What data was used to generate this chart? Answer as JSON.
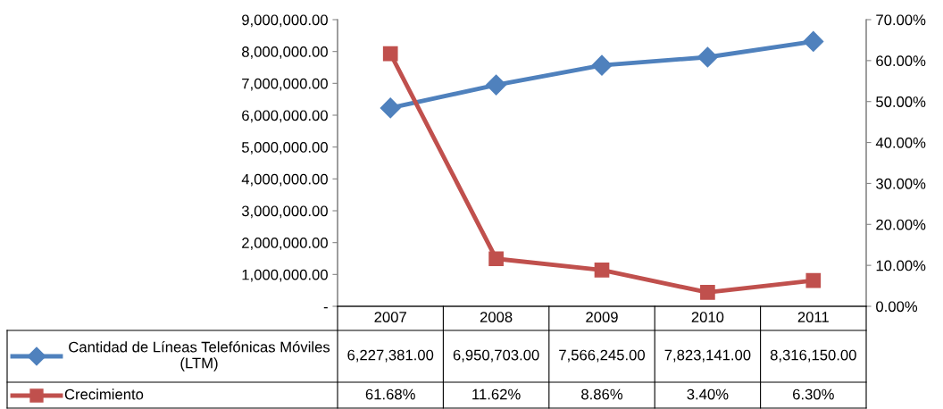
{
  "chart_data": {
    "type": "line",
    "categories": [
      "2007",
      "2008",
      "2009",
      "2010",
      "2011"
    ],
    "series": [
      {
        "name": "Cantidad de Líneas Telefónicas Móviles (LTM)",
        "color": "#4f81bd",
        "marker": "diamond",
        "values": [
          6227381,
          6950703,
          7566245,
          7823141,
          8316150
        ],
        "value_labels": [
          "6,227,381.00",
          "6,950,703.00",
          "7,566,245.00",
          "7,823,141.00",
          "8,316,150.00"
        ]
      },
      {
        "name": "Crecimiento",
        "color": "#c0504d",
        "marker": "square",
        "axis": "y2",
        "values": [
          61.68,
          11.62,
          8.86,
          3.4,
          6.3
        ],
        "value_labels": [
          "61.68%",
          "11.62%",
          "8.86%",
          "3.40%",
          "6.30%"
        ]
      }
    ],
    "ylim": [
      0,
      9000000
    ],
    "yticks": [
      {
        "value": 0,
        "label": "-"
      },
      {
        "value": 1000000,
        "label": "1,000,000.00"
      },
      {
        "value": 2000000,
        "label": "2,000,000.00"
      },
      {
        "value": 3000000,
        "label": "3,000,000.00"
      },
      {
        "value": 4000000,
        "label": "4,000,000.00"
      },
      {
        "value": 5000000,
        "label": "5,000,000.00"
      },
      {
        "value": 6000000,
        "label": "6,000,000.00"
      },
      {
        "value": 7000000,
        "label": "7,000,000.00"
      },
      {
        "value": 8000000,
        "label": "8,000,000.00"
      },
      {
        "value": 9000000,
        "label": "9,000,000.00"
      }
    ],
    "y2lim": [
      0,
      70
    ],
    "y2ticks": [
      {
        "value": 0,
        "label": "0.00%"
      },
      {
        "value": 10,
        "label": "10.00%"
      },
      {
        "value": 20,
        "label": "20.00%"
      },
      {
        "value": 30,
        "label": "30.00%"
      },
      {
        "value": 40,
        "label": "40.00%"
      },
      {
        "value": 50,
        "label": "50.00%"
      },
      {
        "value": 60,
        "label": "60.00%"
      },
      {
        "value": 70,
        "label": "70.00%"
      }
    ],
    "legend": "bottom",
    "grid": false,
    "line_style": "solid"
  }
}
